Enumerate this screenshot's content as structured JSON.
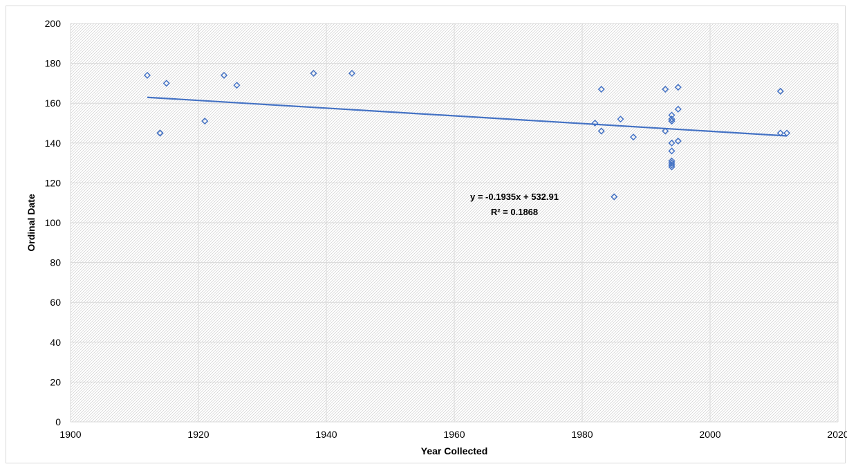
{
  "chart_data": {
    "type": "scatter",
    "title": "",
    "xlabel": "Year Collected",
    "ylabel": "Ordinal Date",
    "xlim": [
      1900,
      2020
    ],
    "ylim": [
      0,
      200
    ],
    "x_ticks": [
      "1900",
      "1920",
      "1940",
      "1960",
      "1980",
      "2000",
      "2020"
    ],
    "y_ticks": [
      "0",
      "20",
      "40",
      "60",
      "80",
      "100",
      "120",
      "140",
      "160",
      "180",
      "200"
    ],
    "grid": true,
    "legend": "none",
    "marker": "diamond-open",
    "colors": {
      "marker": "#4472c4",
      "trendline": "#4472c4",
      "grid": "#d9d9d9",
      "hatch": "#bfbfbf"
    },
    "series": [
      {
        "x": [
          1912,
          1914,
          1914,
          1915,
          1921,
          1924,
          1926,
          1938,
          1944,
          1982,
          1983,
          1983,
          1985,
          1986,
          1988,
          1993,
          1993,
          1994,
          1994,
          1994,
          1994,
          1994,
          1994,
          1994,
          1994,
          1994,
          1994,
          1994,
          1995,
          1995,
          1995,
          2011,
          2011,
          2012
        ],
        "y": [
          174,
          145,
          145,
          170,
          151,
          174,
          169,
          175,
          175,
          150,
          146,
          167,
          113,
          152,
          143,
          146,
          167,
          154,
          152,
          151,
          151,
          140,
          136,
          131,
          130,
          129,
          129,
          128,
          168,
          157,
          141,
          166,
          145,
          145
        ]
      }
    ],
    "trendline": {
      "type": "linear",
      "slope": -0.1935,
      "intercept": 532.91,
      "x_range": [
        1912,
        2012
      ],
      "equation": "y = -0.1935x + 532.91",
      "r_squared": "R² = 0.1868"
    }
  }
}
